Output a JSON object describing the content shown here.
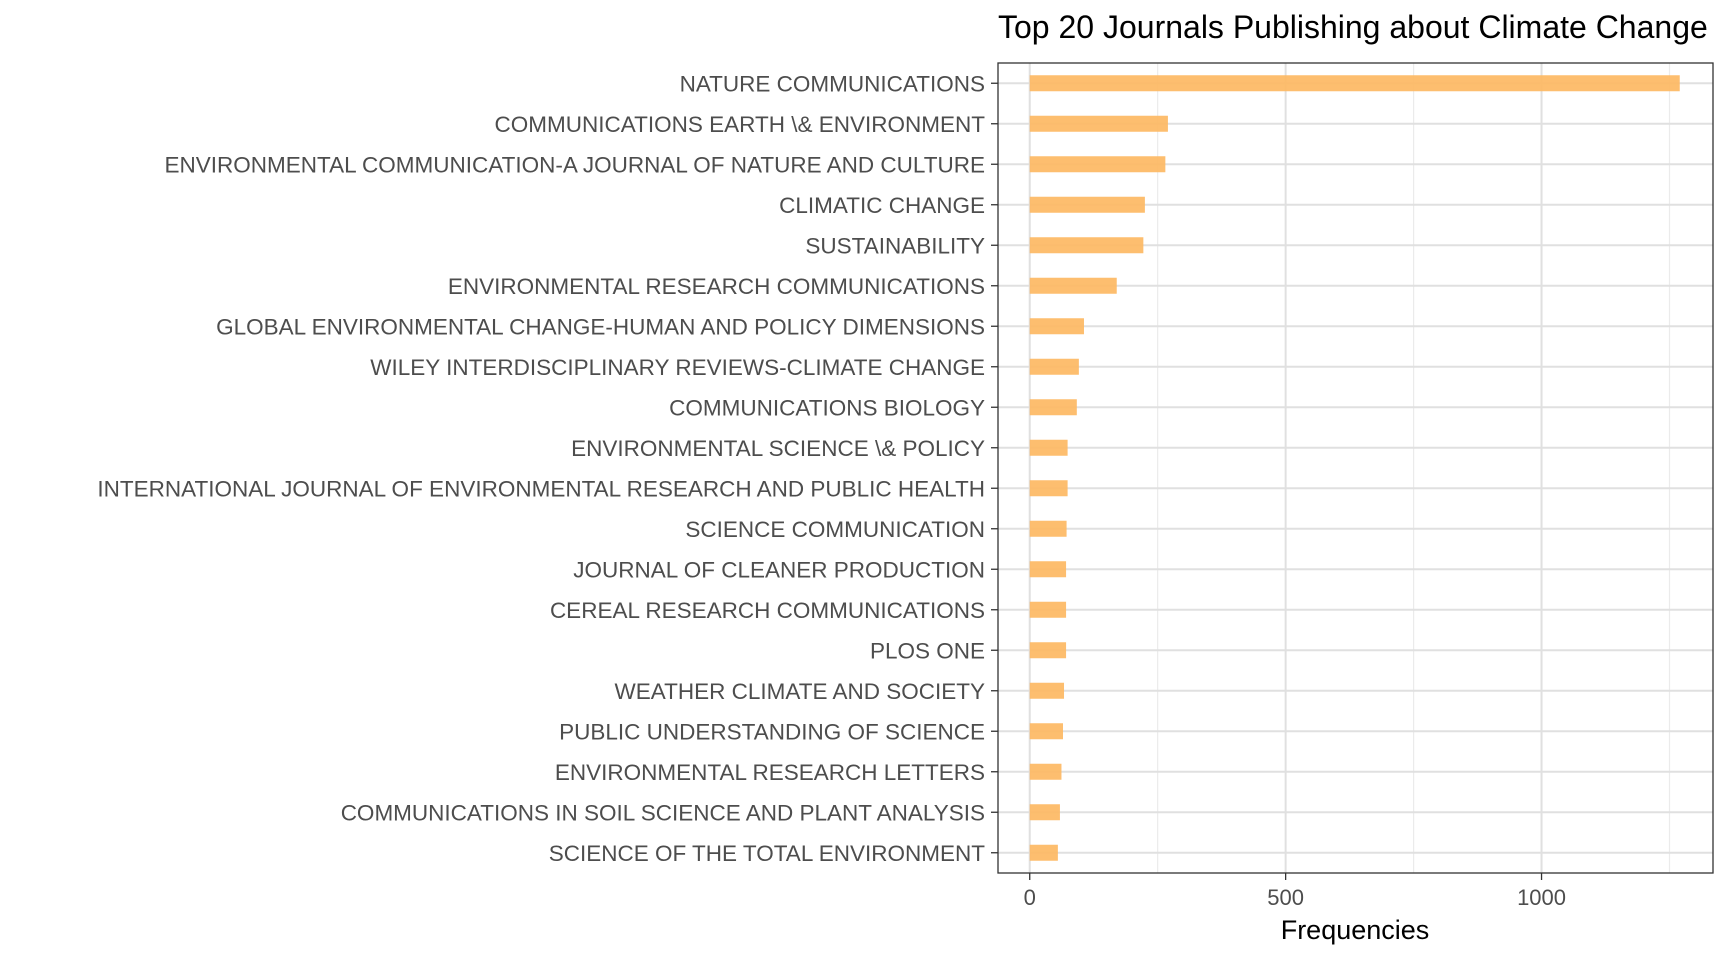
{
  "chart_data": {
    "type": "bar",
    "orientation": "horizontal",
    "title": "Top 20 Journals Publishing about Climate Change",
    "xlabel": "Frequencies",
    "ylabel": "",
    "xlim": [
      -62,
      1335
    ],
    "xticks": [
      0,
      500,
      1000
    ],
    "xtick_labels": [
      "0",
      "500",
      "1000"
    ],
    "grid": true,
    "legend": "none",
    "bar_color": "#FDB863",
    "categories": [
      "NATURE COMMUNICATIONS",
      "COMMUNICATIONS EARTH \\& ENVIRONMENT",
      "ENVIRONMENTAL COMMUNICATION-A JOURNAL OF NATURE AND CULTURE",
      "CLIMATIC CHANGE",
      "SUSTAINABILITY",
      "ENVIRONMENTAL RESEARCH COMMUNICATIONS",
      "GLOBAL ENVIRONMENTAL CHANGE-HUMAN AND POLICY DIMENSIONS",
      "WILEY INTERDISCIPLINARY REVIEWS-CLIMATE CHANGE",
      "COMMUNICATIONS BIOLOGY",
      "ENVIRONMENTAL SCIENCE \\& POLICY",
      "INTERNATIONAL JOURNAL OF ENVIRONMENTAL RESEARCH AND PUBLIC HEALTH",
      "SCIENCE COMMUNICATION",
      "JOURNAL OF CLEANER PRODUCTION",
      "CEREAL RESEARCH COMMUNICATIONS",
      "PLOS ONE",
      "WEATHER CLIMATE AND SOCIETY",
      "PUBLIC UNDERSTANDING OF SCIENCE",
      "ENVIRONMENTAL RESEARCH LETTERS",
      "COMMUNICATIONS IN SOIL SCIENCE AND PLANT ANALYSIS",
      "SCIENCE OF THE TOTAL ENVIRONMENT"
    ],
    "values": [
      1270,
      270,
      265,
      225,
      222,
      170,
      106,
      96,
      92,
      74,
      74,
      72,
      71,
      71,
      71,
      67,
      65,
      62,
      59,
      55
    ]
  }
}
